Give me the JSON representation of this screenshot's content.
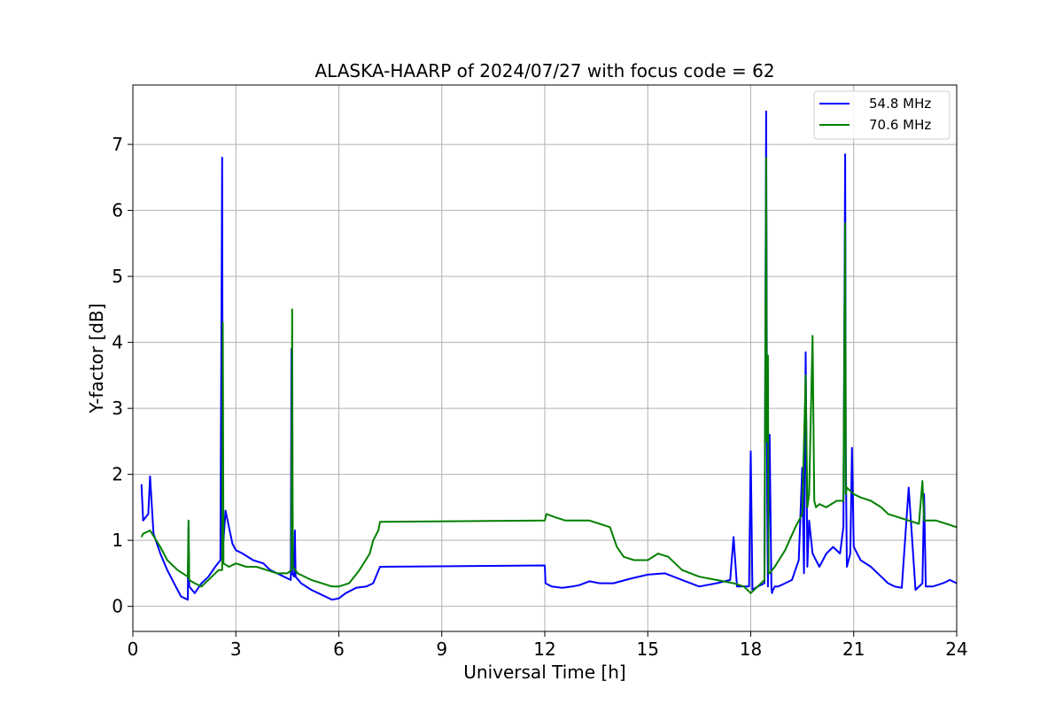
{
  "chart_data": {
    "type": "line",
    "title": "ALASKA-HAARP of 2024/07/27 with focus code = 62",
    "xlabel": "Universal Time [h]",
    "ylabel": "Y-factor [dB]",
    "xlim": [
      0,
      24
    ],
    "ylim": [
      -0.38,
      7.9
    ],
    "xticks": [
      0,
      3,
      6,
      9,
      12,
      15,
      18,
      21,
      24
    ],
    "yticks": [
      0,
      1,
      2,
      3,
      4,
      5,
      6,
      7
    ],
    "grid": true,
    "legend_position": "top-right",
    "series": [
      {
        "name": "54.8 MHz",
        "color": "#0000ff",
        "x": [
          0.25,
          0.3,
          0.45,
          0.5,
          0.6,
          0.8,
          1.0,
          1.2,
          1.4,
          1.6,
          1.62,
          1.64,
          1.8,
          2.0,
          2.2,
          2.4,
          2.55,
          2.6,
          2.62,
          2.64,
          2.7,
          2.8,
          2.9,
          3.0,
          3.2,
          3.5,
          3.8,
          4.0,
          4.2,
          4.4,
          4.6,
          4.62,
          4.64,
          4.7,
          4.72,
          4.74,
          4.9,
          5.2,
          5.4,
          5.6,
          5.8,
          6.0,
          6.2,
          6.5,
          6.8,
          7.0,
          7.2,
          12.0,
          12.02,
          12.2,
          12.5,
          12.8,
          13.0,
          13.3,
          13.6,
          14.0,
          14.5,
          15.0,
          15.5,
          16.0,
          16.5,
          17.0,
          17.4,
          17.5,
          17.6,
          17.8,
          17.95,
          18.0,
          18.05,
          18.2,
          18.4,
          18.45,
          18.48,
          18.5,
          18.55,
          18.6,
          18.62,
          18.65,
          18.7,
          18.8,
          19.0,
          19.2,
          19.4,
          19.5,
          19.55,
          19.6,
          19.65,
          19.7,
          19.8,
          20.0,
          20.2,
          20.4,
          20.6,
          20.7,
          20.75,
          20.77,
          20.8,
          20.9,
          20.95,
          21.0,
          21.2,
          21.5,
          21.8,
          22.0,
          22.2,
          22.4,
          22.6,
          22.8,
          23.0,
          23.05,
          23.1,
          23.3,
          23.6,
          23.8,
          24.0
        ],
        "values": [
          1.85,
          1.3,
          1.4,
          1.97,
          1.1,
          0.8,
          0.55,
          0.35,
          0.15,
          0.1,
          1.2,
          0.3,
          0.2,
          0.35,
          0.45,
          0.6,
          0.7,
          6.8,
          0.9,
          1.0,
          1.45,
          1.2,
          0.95,
          0.85,
          0.8,
          0.7,
          0.65,
          0.55,
          0.5,
          0.45,
          0.4,
          3.9,
          0.5,
          0.45,
          1.15,
          0.45,
          0.35,
          0.25,
          0.2,
          0.15,
          0.1,
          0.12,
          0.2,
          0.28,
          0.3,
          0.35,
          0.6,
          0.62,
          0.35,
          0.3,
          0.28,
          0.3,
          0.32,
          0.38,
          0.35,
          0.35,
          0.42,
          0.48,
          0.5,
          0.4,
          0.3,
          0.35,
          0.4,
          1.05,
          0.3,
          0.3,
          0.3,
          2.35,
          0.25,
          0.3,
          0.35,
          7.5,
          1.6,
          0.3,
          2.6,
          0.3,
          0.2,
          0.25,
          0.3,
          0.3,
          0.35,
          0.4,
          0.7,
          2.1,
          0.5,
          3.85,
          0.6,
          1.3,
          0.8,
          0.6,
          0.8,
          0.9,
          0.8,
          1.2,
          6.85,
          2.3,
          0.6,
          0.8,
          2.4,
          0.9,
          0.7,
          0.6,
          0.45,
          0.35,
          0.3,
          0.28,
          1.8,
          0.25,
          0.35,
          1.7,
          0.3,
          0.3,
          0.35,
          0.4,
          0.35
        ]
      },
      {
        "name": "70.6 MHz",
        "color": "#008000",
        "x": [
          0.25,
          0.3,
          0.5,
          0.8,
          1.0,
          1.3,
          1.6,
          1.62,
          1.64,
          1.8,
          2.0,
          2.3,
          2.5,
          2.6,
          2.62,
          2.64,
          2.8,
          3.0,
          3.3,
          3.6,
          3.9,
          4.2,
          4.5,
          4.62,
          4.64,
          4.66,
          4.8,
          5.2,
          5.5,
          5.8,
          6.0,
          6.3,
          6.6,
          6.9,
          7.0,
          7.15,
          7.2,
          12.0,
          12.05,
          12.3,
          12.6,
          13.0,
          13.3,
          13.6,
          13.9,
          14.1,
          14.3,
          14.6,
          15.0,
          15.3,
          15.6,
          16.0,
          16.5,
          17.0,
          17.5,
          17.8,
          18.0,
          18.2,
          18.4,
          18.45,
          18.47,
          18.5,
          18.52,
          18.55,
          18.7,
          19.0,
          19.3,
          19.5,
          19.6,
          19.65,
          19.7,
          19.8,
          19.85,
          19.9,
          20.0,
          20.2,
          20.5,
          20.7,
          20.75,
          20.77,
          20.8,
          21.0,
          21.2,
          21.5,
          21.8,
          22.0,
          22.3,
          22.6,
          22.9,
          23.0,
          23.05,
          23.1,
          23.4,
          23.7,
          24.0
        ],
        "values": [
          1.05,
          1.1,
          1.15,
          0.9,
          0.7,
          0.55,
          0.45,
          1.3,
          0.4,
          0.35,
          0.3,
          0.45,
          0.55,
          0.55,
          4.3,
          0.65,
          0.6,
          0.65,
          0.6,
          0.6,
          0.55,
          0.5,
          0.5,
          0.55,
          4.5,
          0.6,
          0.5,
          0.4,
          0.35,
          0.3,
          0.3,
          0.35,
          0.55,
          0.8,
          1.0,
          1.15,
          1.28,
          1.3,
          1.4,
          1.35,
          1.3,
          1.3,
          1.3,
          1.25,
          1.2,
          0.9,
          0.75,
          0.7,
          0.7,
          0.8,
          0.75,
          0.55,
          0.45,
          0.4,
          0.35,
          0.3,
          0.2,
          0.3,
          0.4,
          6.8,
          2.5,
          3.8,
          0.5,
          0.5,
          0.6,
          0.85,
          1.2,
          1.4,
          3.5,
          1.5,
          1.7,
          4.1,
          1.6,
          1.5,
          1.55,
          1.5,
          1.6,
          1.6,
          5.8,
          1.7,
          1.8,
          1.7,
          1.65,
          1.6,
          1.5,
          1.4,
          1.35,
          1.3,
          1.25,
          1.9,
          1.3,
          1.3,
          1.3,
          1.25,
          1.2
        ]
      }
    ]
  }
}
